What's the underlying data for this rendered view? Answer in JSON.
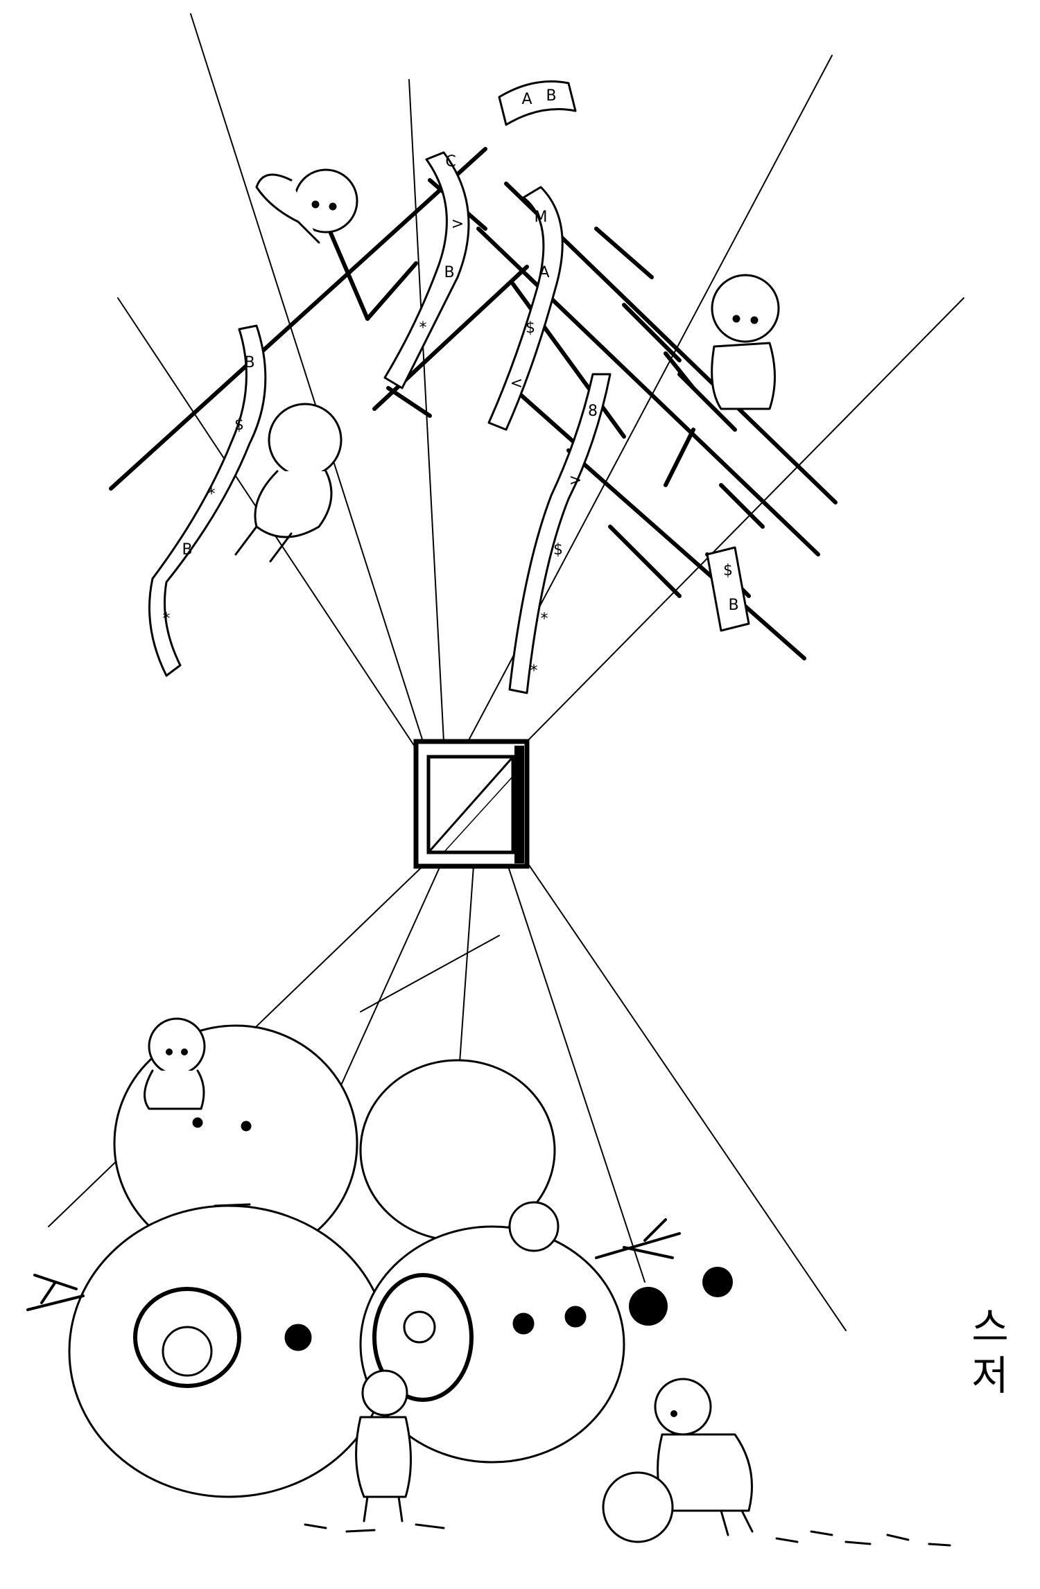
{
  "artwork": {
    "ribbon_glyphs": [
      "A",
      "B",
      "C",
      "$",
      "*",
      "<",
      ">",
      "8",
      "M"
    ],
    "signature": "스저",
    "ink_color": "#000000",
    "paper_color": "#ffffff"
  }
}
